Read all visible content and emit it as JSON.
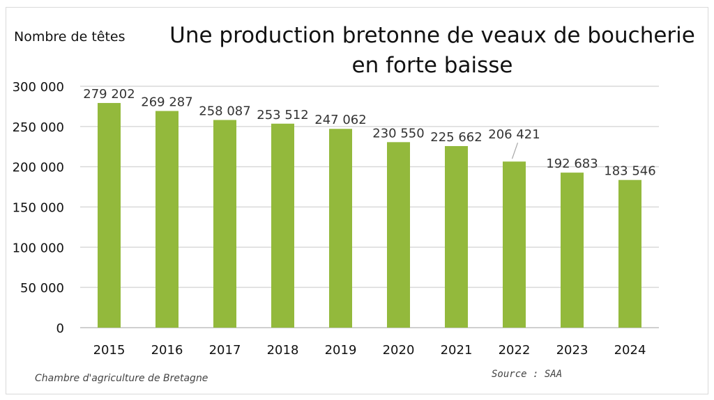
{
  "header": {
    "unit_label": "Nombre de têtes",
    "title": "Une production bretonne de veaux de boucherie en forte baisse"
  },
  "footer": {
    "publisher": "Chambre d'agriculture de Bretagne",
    "source": "Source : SAA"
  },
  "colors": {
    "bar": "#93b93c",
    "grid": "#d9d9d9",
    "axis": "#bfbfbf"
  },
  "chart_data": {
    "type": "bar",
    "title": "Une production bretonne de veaux de boucherie en forte baisse",
    "ylabel": "Nombre de têtes",
    "xlabel": "",
    "categories": [
      "2015",
      "2016",
      "2017",
      "2018",
      "2019",
      "2020",
      "2021",
      "2022",
      "2023",
      "2024"
    ],
    "values": [
      279202,
      269287,
      258087,
      253512,
      247062,
      230550,
      225662,
      206421,
      192683,
      183546
    ],
    "value_labels": [
      "279 202",
      "269 287",
      "258 087",
      "253 512",
      "247 062",
      "230 550",
      "225 662",
      "206 421",
      "192 683",
      "183 546"
    ],
    "ylim": [
      0,
      300000
    ],
    "yticks": [
      0,
      50000,
      100000,
      150000,
      200000,
      250000,
      300000
    ],
    "ytick_labels": [
      "0",
      "50 000",
      "100 000",
      "150 000",
      "200 000",
      "250 000",
      "300 000"
    ],
    "grid": true,
    "legend": "none"
  }
}
